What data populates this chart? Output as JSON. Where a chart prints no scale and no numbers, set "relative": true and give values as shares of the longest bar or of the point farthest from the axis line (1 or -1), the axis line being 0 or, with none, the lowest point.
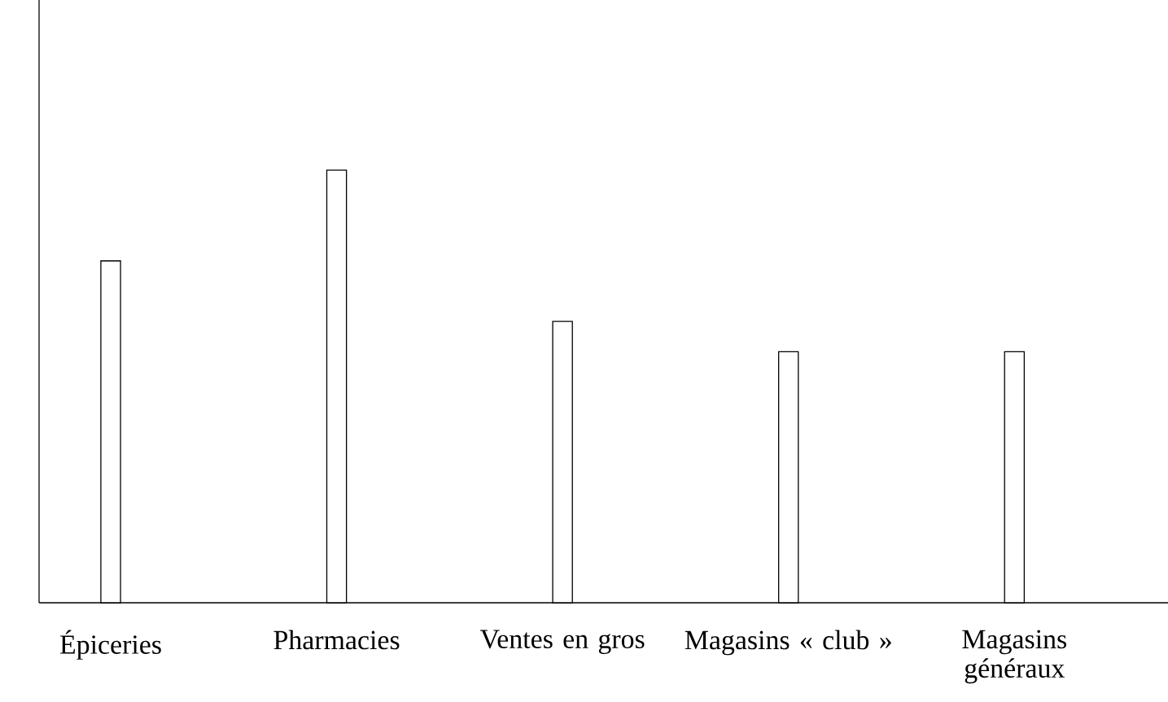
{
  "chart_data": {
    "type": "bar",
    "relative": true,
    "color": "#ffffff",
    "categories": [
      "Épiceries",
      "Pharmacies",
      "Ventes en gros",
      "Magasins « club »",
      "Magasins généraux"
    ],
    "values": [
      0.79,
      1,
      0.65,
      0.58,
      0.58
    ]
  }
}
